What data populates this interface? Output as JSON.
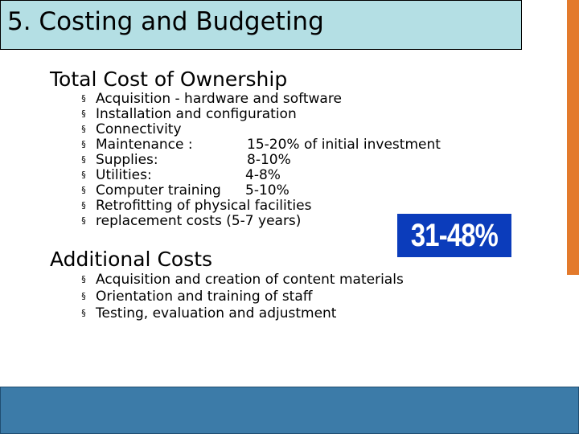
{
  "title": "5. Costing and Budgeting",
  "tco": {
    "heading": "Total Cost of Ownership",
    "bullet_glyph": "§",
    "items": [
      {
        "text": "Acquisition - hardware and software",
        "value": ""
      },
      {
        "text": "Installation and configuration",
        "value": ""
      },
      {
        "text": "Connectivity",
        "value": ""
      },
      {
        "text": "Maintenance :",
        "value": "15-20% of initial investment"
      },
      {
        "text": "Supplies:",
        "value": "8-10%"
      },
      {
        "text": "Utilities:",
        "value": "4-8%"
      },
      {
        "text": "Computer training",
        "value": "5-10%"
      },
      {
        "text": "Retrofitting of physical facilities",
        "value": ""
      },
      {
        "text": "replacement costs (5-7 years)",
        "value": ""
      }
    ]
  },
  "total_range": "31-48%",
  "additional": {
    "heading": "Additional Costs",
    "items": [
      {
        "text": "Acquisition and creation of content materials"
      },
      {
        "text": "Orientation and training of staff"
      },
      {
        "text": "Testing, evaluation and adjustment"
      }
    ]
  },
  "colors": {
    "title_bg": "#b4dfe4",
    "accent_bar": "#e37a2c",
    "footer_bar": "#3c7ba8",
    "highlight_bg": "#0b3cbb"
  }
}
